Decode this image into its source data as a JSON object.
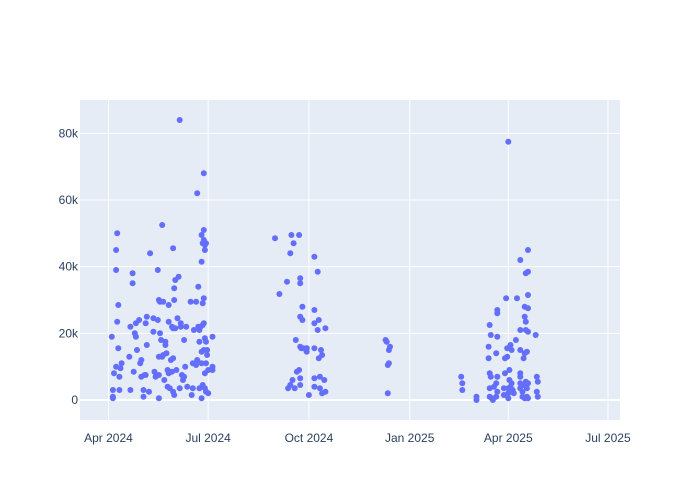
{
  "chart_data": {
    "type": "scatter",
    "title": "",
    "xlabel": "",
    "ylabel": "",
    "x_axis": {
      "type": "date",
      "range": [
        "2024-03-06",
        "2025-07-12"
      ],
      "ticks": [
        {
          "value": "2024-04-01",
          "label": "Apr 2024"
        },
        {
          "value": "2024-07-01",
          "label": "Jul 2024"
        },
        {
          "value": "2024-10-01",
          "label": "Oct 2024"
        },
        {
          "value": "2025-01-01",
          "label": "Jan 2025"
        },
        {
          "value": "2025-04-01",
          "label": "Apr 2025"
        },
        {
          "value": "2025-07-01",
          "label": "Jul 2025"
        }
      ]
    },
    "y_axis": {
      "range": [
        -6000,
        90000
      ],
      "ticks": [
        {
          "value": 0,
          "label": "0"
        },
        {
          "value": 20000,
          "label": "20k"
        },
        {
          "value": 40000,
          "label": "40k"
        },
        {
          "value": 60000,
          "label": "60k"
        },
        {
          "value": 80000,
          "label": "80k"
        }
      ]
    },
    "grid": true,
    "colors": {
      "marker": "#636efa",
      "plot_bg": "#e5ecf6",
      "grid": "#ffffff",
      "text": "#2a3f5f"
    },
    "points": [
      {
        "x": "2024-04-04",
        "y": 19000
      },
      {
        "x": "2024-04-05",
        "y": 3000
      },
      {
        "x": "2024-04-05",
        "y": 1000
      },
      {
        "x": "2024-04-05",
        "y": 500
      },
      {
        "x": "2024-04-06",
        "y": 8000
      },
      {
        "x": "2024-04-08",
        "y": 39000
      },
      {
        "x": "2024-04-08",
        "y": 45000
      },
      {
        "x": "2024-04-08",
        "y": 10000
      },
      {
        "x": "2024-04-09",
        "y": 50000
      },
      {
        "x": "2024-04-09",
        "y": 23500
      },
      {
        "x": "2024-04-10",
        "y": 28500
      },
      {
        "x": "2024-04-10",
        "y": 15500
      },
      {
        "x": "2024-04-11",
        "y": 7000
      },
      {
        "x": "2024-04-11",
        "y": 3000
      },
      {
        "x": "2024-04-12",
        "y": 9500
      },
      {
        "x": "2024-04-13",
        "y": 11000
      },
      {
        "x": "2024-04-20",
        "y": 13000
      },
      {
        "x": "2024-04-21",
        "y": 22000
      },
      {
        "x": "2024-04-21",
        "y": 3000
      },
      {
        "x": "2024-04-23",
        "y": 38000
      },
      {
        "x": "2024-04-23",
        "y": 35000
      },
      {
        "x": "2024-04-24",
        "y": 8500
      },
      {
        "x": "2024-04-25",
        "y": 20000
      },
      {
        "x": "2024-04-26",
        "y": 23000
      },
      {
        "x": "2024-04-26",
        "y": 19000
      },
      {
        "x": "2024-04-27",
        "y": 15000
      },
      {
        "x": "2024-04-29",
        "y": 24000
      },
      {
        "x": "2024-04-30",
        "y": 11000
      },
      {
        "x": "2024-05-01",
        "y": 12000
      },
      {
        "x": "2024-05-01",
        "y": 7000
      },
      {
        "x": "2024-05-03",
        "y": 1000
      },
      {
        "x": "2024-05-03",
        "y": 3000
      },
      {
        "x": "2024-05-04",
        "y": 7500
      },
      {
        "x": "2024-05-05",
        "y": 7500
      },
      {
        "x": "2024-05-05",
        "y": 23000
      },
      {
        "x": "2024-05-06",
        "y": 16500
      },
      {
        "x": "2024-05-06",
        "y": 25000
      },
      {
        "x": "2024-05-08",
        "y": 2500
      },
      {
        "x": "2024-05-09",
        "y": 44000
      },
      {
        "x": "2024-05-12",
        "y": 20500
      },
      {
        "x": "2024-05-12",
        "y": 24500
      },
      {
        "x": "2024-05-13",
        "y": 8500
      },
      {
        "x": "2024-05-14",
        "y": 7000
      },
      {
        "x": "2024-05-16",
        "y": 39000
      },
      {
        "x": "2024-05-16",
        "y": 24000
      },
      {
        "x": "2024-05-17",
        "y": 13000
      },
      {
        "x": "2024-05-17",
        "y": 30000
      },
      {
        "x": "2024-05-17",
        "y": 7500
      },
      {
        "x": "2024-05-17",
        "y": 500
      },
      {
        "x": "2024-05-18",
        "y": 29500
      },
      {
        "x": "2024-05-18",
        "y": 20000
      },
      {
        "x": "2024-05-19",
        "y": 18000
      },
      {
        "x": "2024-05-20",
        "y": 52500
      },
      {
        "x": "2024-05-20",
        "y": 13000
      },
      {
        "x": "2024-05-21",
        "y": 29500
      },
      {
        "x": "2024-05-21",
        "y": 13500
      },
      {
        "x": "2024-05-22",
        "y": 6000
      },
      {
        "x": "2024-05-23",
        "y": 16500
      },
      {
        "x": "2024-05-23",
        "y": 17500
      },
      {
        "x": "2024-05-24",
        "y": 14000
      },
      {
        "x": "2024-05-25",
        "y": 9000
      },
      {
        "x": "2024-05-25",
        "y": 4000
      },
      {
        "x": "2024-05-26",
        "y": 8000
      },
      {
        "x": "2024-05-26",
        "y": 28500
      },
      {
        "x": "2024-05-26",
        "y": 23500
      },
      {
        "x": "2024-05-27",
        "y": 3500
      },
      {
        "x": "2024-05-28",
        "y": 12000
      },
      {
        "x": "2024-05-29",
        "y": 22000
      },
      {
        "x": "2024-05-29",
        "y": 8500
      },
      {
        "x": "2024-05-30",
        "y": 45500
      },
      {
        "x": "2024-05-30",
        "y": 21500
      },
      {
        "x": "2024-05-30",
        "y": 12500
      },
      {
        "x": "2024-05-30",
        "y": 2500
      },
      {
        "x": "2024-05-31",
        "y": 1500
      },
      {
        "x": "2024-05-31",
        "y": 33500
      },
      {
        "x": "2024-05-31",
        "y": 30000
      },
      {
        "x": "2024-06-01",
        "y": 36000
      },
      {
        "x": "2024-06-01",
        "y": 21500
      },
      {
        "x": "2024-06-02",
        "y": 9000
      },
      {
        "x": "2024-06-03",
        "y": 24500
      },
      {
        "x": "2024-06-04",
        "y": 37000
      },
      {
        "x": "2024-06-05",
        "y": 84000
      },
      {
        "x": "2024-06-05",
        "y": 3500
      },
      {
        "x": "2024-06-06",
        "y": 23000
      },
      {
        "x": "2024-06-06",
        "y": 22000
      },
      {
        "x": "2024-06-07",
        "y": 7500
      },
      {
        "x": "2024-06-08",
        "y": 6000
      },
      {
        "x": "2024-06-09",
        "y": 18000
      },
      {
        "x": "2024-06-09",
        "y": 7000
      },
      {
        "x": "2024-06-10",
        "y": 10000
      },
      {
        "x": "2024-06-11",
        "y": 22000
      },
      {
        "x": "2024-06-12",
        "y": 4000
      },
      {
        "x": "2024-06-15",
        "y": 29500
      },
      {
        "x": "2024-06-16",
        "y": 1500
      },
      {
        "x": "2024-06-17",
        "y": 3500
      },
      {
        "x": "2024-06-17",
        "y": 11000
      },
      {
        "x": "2024-06-18",
        "y": 21000
      },
      {
        "x": "2024-06-20",
        "y": 29500
      },
      {
        "x": "2024-06-20",
        "y": 10500
      },
      {
        "x": "2024-06-21",
        "y": 62000
      },
      {
        "x": "2024-06-21",
        "y": 12000
      },
      {
        "x": "2024-06-22",
        "y": 22000
      },
      {
        "x": "2024-06-22",
        "y": 34000
      },
      {
        "x": "2024-06-23",
        "y": 21000
      },
      {
        "x": "2024-06-23",
        "y": 17500
      },
      {
        "x": "2024-06-23",
        "y": 3500
      },
      {
        "x": "2024-06-24",
        "y": 22000
      },
      {
        "x": "2024-06-25",
        "y": 49500
      },
      {
        "x": "2024-06-25",
        "y": 41500
      },
      {
        "x": "2024-06-25",
        "y": 14500
      },
      {
        "x": "2024-06-25",
        "y": 11000
      },
      {
        "x": "2024-06-25",
        "y": 500
      },
      {
        "x": "2024-06-26",
        "y": 47000
      },
      {
        "x": "2024-06-26",
        "y": 29000
      },
      {
        "x": "2024-06-26",
        "y": 22500
      },
      {
        "x": "2024-06-26",
        "y": 4500
      },
      {
        "x": "2024-06-27",
        "y": 68000
      },
      {
        "x": "2024-06-27",
        "y": 48000
      },
      {
        "x": "2024-06-27",
        "y": 51000
      },
      {
        "x": "2024-06-27",
        "y": 30500
      },
      {
        "x": "2024-06-27",
        "y": 23000
      },
      {
        "x": "2024-06-27",
        "y": 15000
      },
      {
        "x": "2024-06-28",
        "y": 46500
      },
      {
        "x": "2024-06-28",
        "y": 45000
      },
      {
        "x": "2024-06-28",
        "y": 18500
      },
      {
        "x": "2024-06-28",
        "y": 8000
      },
      {
        "x": "2024-06-28",
        "y": 3500
      },
      {
        "x": "2024-06-29",
        "y": 47000
      },
      {
        "x": "2024-06-29",
        "y": 17500
      },
      {
        "x": "2024-06-29",
        "y": 11000
      },
      {
        "x": "2024-06-29",
        "y": 2500
      },
      {
        "x": "2024-06-30",
        "y": 15000
      },
      {
        "x": "2024-06-30",
        "y": 13500
      },
      {
        "x": "2024-07-01",
        "y": 9000
      },
      {
        "x": "2024-07-01",
        "y": 2000
      },
      {
        "x": "2024-07-05",
        "y": 19000
      },
      {
        "x": "2024-07-05",
        "y": 10000
      },
      {
        "x": "2024-07-05",
        "y": 9000
      },
      {
        "x": "2024-08-31",
        "y": 48500
      },
      {
        "x": "2024-09-04",
        "y": 31800
      },
      {
        "x": "2024-09-11",
        "y": 35500
      },
      {
        "x": "2024-09-12",
        "y": 3500
      },
      {
        "x": "2024-09-14",
        "y": 44000
      },
      {
        "x": "2024-09-14",
        "y": 4500
      },
      {
        "x": "2024-09-15",
        "y": 49500
      },
      {
        "x": "2024-09-16",
        "y": 6000
      },
      {
        "x": "2024-09-17",
        "y": 47000
      },
      {
        "x": "2024-09-18",
        "y": 3500
      },
      {
        "x": "2024-09-19",
        "y": 18000
      },
      {
        "x": "2024-09-20",
        "y": 8500
      },
      {
        "x": "2024-09-22",
        "y": 49500
      },
      {
        "x": "2024-09-22",
        "y": 9000
      },
      {
        "x": "2024-09-23",
        "y": 36500
      },
      {
        "x": "2024-09-23",
        "y": 35000
      },
      {
        "x": "2024-09-23",
        "y": 25000
      },
      {
        "x": "2024-09-23",
        "y": 16000
      },
      {
        "x": "2024-09-23",
        "y": 6500
      },
      {
        "x": "2024-09-23",
        "y": 4500
      },
      {
        "x": "2024-09-24",
        "y": 15500
      },
      {
        "x": "2024-09-25",
        "y": 24000
      },
      {
        "x": "2024-09-25",
        "y": 28000
      },
      {
        "x": "2024-09-26",
        "y": 15500
      },
      {
        "x": "2024-09-29",
        "y": 14500
      },
      {
        "x": "2024-09-29",
        "y": 15500
      },
      {
        "x": "2024-09-29",
        "y": 15500
      },
      {
        "x": "2024-10-01",
        "y": 1500
      },
      {
        "x": "2024-10-06",
        "y": 43000
      },
      {
        "x": "2024-10-06",
        "y": 27000
      },
      {
        "x": "2024-10-06",
        "y": 23000
      },
      {
        "x": "2024-10-06",
        "y": 15500
      },
      {
        "x": "2024-10-06",
        "y": 6500
      },
      {
        "x": "2024-10-06",
        "y": 4000
      },
      {
        "x": "2024-10-09",
        "y": 38500
      },
      {
        "x": "2024-10-09",
        "y": 21000
      },
      {
        "x": "2024-10-10",
        "y": 24000
      },
      {
        "x": "2024-10-10",
        "y": 12500
      },
      {
        "x": "2024-10-11",
        "y": 3500
      },
      {
        "x": "2024-10-11",
        "y": 7000
      },
      {
        "x": "2024-10-12",
        "y": 15000
      },
      {
        "x": "2024-10-13",
        "y": 13500
      },
      {
        "x": "2024-10-13",
        "y": 2000
      },
      {
        "x": "2024-10-15",
        "y": 6000
      },
      {
        "x": "2024-10-16",
        "y": 21500
      },
      {
        "x": "2024-10-16",
        "y": 2500
      },
      {
        "x": "2024-12-10",
        "y": 18000
      },
      {
        "x": "2024-12-11",
        "y": 17500
      },
      {
        "x": "2024-12-12",
        "y": 10500
      },
      {
        "x": "2024-12-12",
        "y": 2000
      },
      {
        "x": "2024-12-13",
        "y": 15000
      },
      {
        "x": "2024-12-13",
        "y": 11000
      },
      {
        "x": "2024-12-14",
        "y": 16000
      },
      {
        "x": "2025-02-17",
        "y": 7000
      },
      {
        "x": "2025-02-18",
        "y": 5000
      },
      {
        "x": "2025-02-18",
        "y": 3000
      },
      {
        "x": "2025-03-03",
        "y": 1000
      },
      {
        "x": "2025-03-03",
        "y": 0
      },
      {
        "x": "2025-03-14",
        "y": 16000
      },
      {
        "x": "2025-03-14",
        "y": 12500
      },
      {
        "x": "2025-03-15",
        "y": 22500
      },
      {
        "x": "2025-03-15",
        "y": 8000
      },
      {
        "x": "2025-03-15",
        "y": 3500
      },
      {
        "x": "2025-03-15",
        "y": 1000
      },
      {
        "x": "2025-03-16",
        "y": 19500
      },
      {
        "x": "2025-03-16",
        "y": 7000
      },
      {
        "x": "2025-03-17",
        "y": 500
      },
      {
        "x": "2025-03-18",
        "y": 0
      },
      {
        "x": "2025-03-19",
        "y": 4000
      },
      {
        "x": "2025-03-21",
        "y": 14000
      },
      {
        "x": "2025-03-21",
        "y": 5000
      },
      {
        "x": "2025-03-21",
        "y": 1000
      },
      {
        "x": "2025-03-22",
        "y": 27000
      },
      {
        "x": "2025-03-22",
        "y": 26000
      },
      {
        "x": "2025-03-22",
        "y": 19000
      },
      {
        "x": "2025-03-22",
        "y": 7000
      },
      {
        "x": "2025-03-22",
        "y": 2500
      },
      {
        "x": "2025-03-28",
        "y": 3500
      },
      {
        "x": "2025-03-28",
        "y": 1500
      },
      {
        "x": "2025-03-29",
        "y": 12500
      },
      {
        "x": "2025-03-29",
        "y": 8000
      },
      {
        "x": "2025-03-30",
        "y": 30500
      },
      {
        "x": "2025-03-31",
        "y": 15500
      },
      {
        "x": "2025-03-31",
        "y": 13000
      },
      {
        "x": "2025-04-01",
        "y": 77500
      },
      {
        "x": "2025-04-01",
        "y": 3500
      },
      {
        "x": "2025-04-01",
        "y": 2000
      },
      {
        "x": "2025-04-01",
        "y": 500
      },
      {
        "x": "2025-04-02",
        "y": 9000
      },
      {
        "x": "2025-04-02",
        "y": 6000
      },
      {
        "x": "2025-04-03",
        "y": 16500
      },
      {
        "x": "2025-04-03",
        "y": 4000
      },
      {
        "x": "2025-04-04",
        "y": 15000
      },
      {
        "x": "2025-04-04",
        "y": 5000
      },
      {
        "x": "2025-04-05",
        "y": 3000
      },
      {
        "x": "2025-04-06",
        "y": 2000
      },
      {
        "x": "2025-04-08",
        "y": 18000
      },
      {
        "x": "2025-04-09",
        "y": 30500
      },
      {
        "x": "2025-04-12",
        "y": 42000
      },
      {
        "x": "2025-04-12",
        "y": 21000
      },
      {
        "x": "2025-04-12",
        "y": 15000
      },
      {
        "x": "2025-04-12",
        "y": 8000
      },
      {
        "x": "2025-04-12",
        "y": 7000
      },
      {
        "x": "2025-04-12",
        "y": 5000
      },
      {
        "x": "2025-04-12",
        "y": 3500
      },
      {
        "x": "2025-04-13",
        "y": 4500
      },
      {
        "x": "2025-04-14",
        "y": 2500
      },
      {
        "x": "2025-04-14",
        "y": 1000
      },
      {
        "x": "2025-04-15",
        "y": 12500
      },
      {
        "x": "2025-04-15",
        "y": 4500
      },
      {
        "x": "2025-04-16",
        "y": 28000
      },
      {
        "x": "2025-04-16",
        "y": 25000
      },
      {
        "x": "2025-04-16",
        "y": 14000
      },
      {
        "x": "2025-04-16",
        "y": 500
      },
      {
        "x": "2025-04-17",
        "y": 38000
      },
      {
        "x": "2025-04-17",
        "y": 23500
      },
      {
        "x": "2025-04-17",
        "y": 21000
      },
      {
        "x": "2025-04-17",
        "y": 5500
      },
      {
        "x": "2025-04-18",
        "y": 14500
      },
      {
        "x": "2025-04-18",
        "y": 3500
      },
      {
        "x": "2025-04-18",
        "y": 1000
      },
      {
        "x": "2025-04-19",
        "y": 45000
      },
      {
        "x": "2025-04-19",
        "y": 38500
      },
      {
        "x": "2025-04-19",
        "y": 31500
      },
      {
        "x": "2025-04-19",
        "y": 27500
      },
      {
        "x": "2025-04-19",
        "y": 20500
      },
      {
        "x": "2025-04-19",
        "y": 5000
      },
      {
        "x": "2025-04-19",
        "y": 500
      },
      {
        "x": "2025-04-26",
        "y": 19500
      },
      {
        "x": "2025-04-27",
        "y": 2500
      },
      {
        "x": "2025-04-27",
        "y": 7000
      },
      {
        "x": "2025-04-28",
        "y": 5500
      },
      {
        "x": "2025-04-28",
        "y": 1000
      }
    ]
  }
}
